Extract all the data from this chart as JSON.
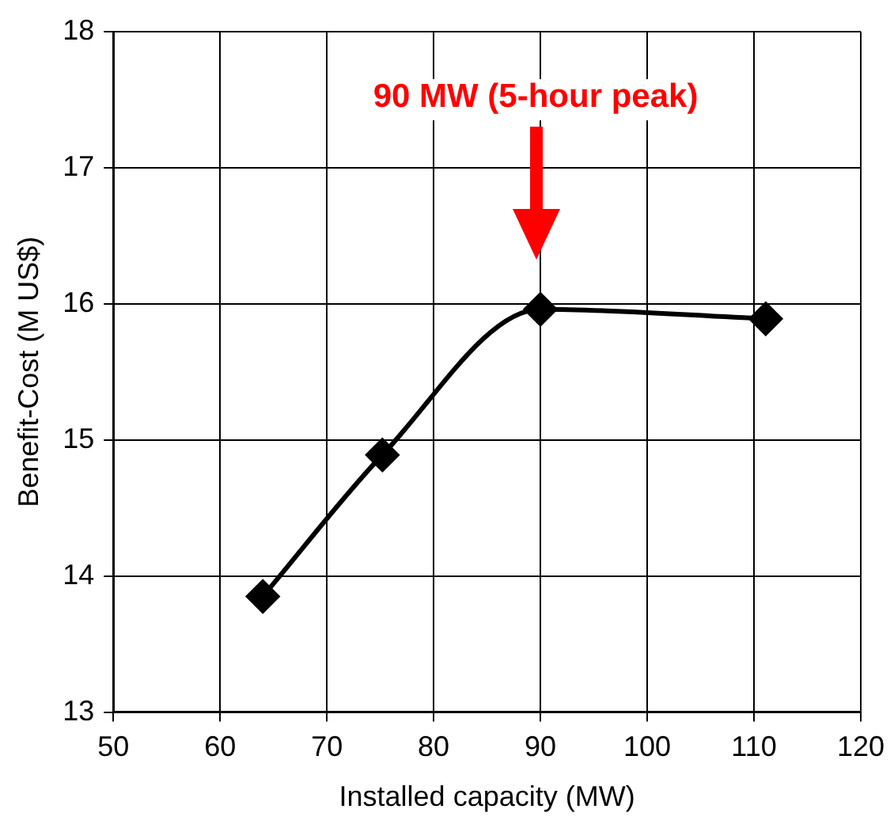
{
  "chart_data": {
    "type": "line",
    "xlabel": "Installed capacity (MW)",
    "ylabel": "Benefit-Cost (M US$)",
    "x": [
      64.0,
      75.2,
      90.0,
      111.1
    ],
    "series": [
      {
        "color": "#000000",
        "values": [
          13.85,
          14.89,
          15.96,
          15.89
        ]
      }
    ],
    "xlim": [
      50,
      120
    ],
    "xticks": [
      50,
      60,
      70,
      80,
      90,
      100,
      110,
      120
    ],
    "ylim": [
      13,
      18
    ],
    "yticks": [
      13,
      14,
      15,
      16,
      17,
      18
    ],
    "grid": true,
    "legend": false,
    "marker": "diamond",
    "line_style": "solid",
    "annotations": [
      "90 MW (5-hour peak)"
    ]
  }
}
